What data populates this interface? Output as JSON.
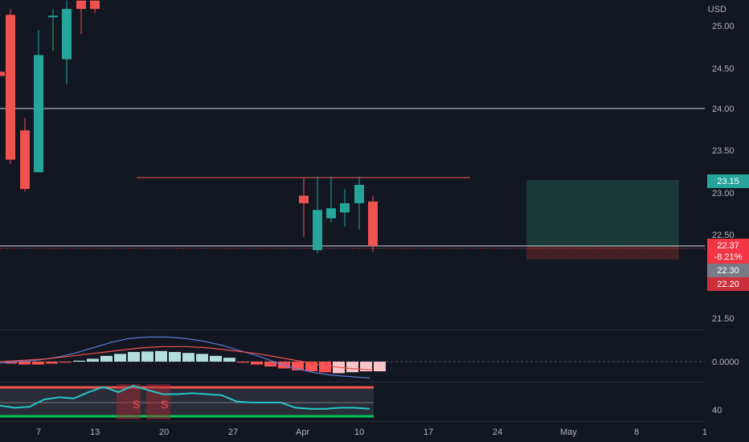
{
  "header": {
    "currency": "USD"
  },
  "price_scale": {
    "labels": [
      "25.00",
      "24.50",
      "24.00",
      "23.50",
      "23.00",
      "22.50",
      "21.50"
    ],
    "tags": [
      {
        "text": "23.15",
        "kind": "green"
      },
      {
        "text": "22.37",
        "kind": "red"
      },
      {
        "text": "-8.21%",
        "kind": "red"
      },
      {
        "text": "22.30",
        "kind": "gray"
      },
      {
        "text": "22.20",
        "kind": "darkred"
      }
    ]
  },
  "oscillator_scale": {
    "labels": [
      "0.0000"
    ]
  },
  "rsi_scale": {
    "labels": [
      "40"
    ]
  },
  "time_axis": {
    "labels": [
      "7",
      "13",
      "20",
      "27",
      "Apr",
      "10",
      "17",
      "24",
      "May",
      "8",
      "1"
    ]
  },
  "signals": {
    "labels": [
      "S",
      "S"
    ]
  },
  "colors": {
    "background": "#131722",
    "up": "#26a69a",
    "down": "#ef5350",
    "grid": "#2a2e39",
    "text": "#b2b5be"
  },
  "chart_data": {
    "type": "candlestick",
    "ylim": [
      21.2,
      25.3
    ],
    "candles": [
      {
        "o": 24.45,
        "h": 24.45,
        "l": 24.4,
        "c": 24.4
      },
      {
        "o": 25.13,
        "h": 25.2,
        "l": 23.35,
        "c": 23.4
      },
      {
        "o": 23.75,
        "h": 23.9,
        "l": 23.02,
        "c": 23.05
      },
      {
        "o": 23.25,
        "h": 24.95,
        "l": 23.25,
        "c": 24.65
      },
      {
        "o": 25.12,
        "h": 25.2,
        "l": 24.7,
        "c": 25.12
      },
      {
        "o": 24.6,
        "h": 25.3,
        "l": 24.3,
        "c": 25.2
      },
      {
        "o": 25.3,
        "h": 25.3,
        "l": 24.9,
        "c": 25.2
      },
      {
        "o": 25.3,
        "h": 25.3,
        "l": 25.15,
        "c": 25.2
      },
      {
        "o": 22.97,
        "h": 23.18,
        "l": 22.48,
        "c": 22.88
      },
      {
        "o": 22.32,
        "h": 23.2,
        "l": 22.28,
        "c": 22.8
      },
      {
        "o": 22.7,
        "h": 23.2,
        "l": 22.65,
        "c": 22.82
      },
      {
        "o": 22.77,
        "h": 23.05,
        "l": 22.6,
        "c": 22.88
      },
      {
        "o": 22.88,
        "h": 23.2,
        "l": 22.57,
        "c": 23.1
      },
      {
        "o": 22.9,
        "h": 22.97,
        "l": 22.3,
        "c": 22.37
      }
    ],
    "horizontal_lines": [
      24.0,
      22.37
    ],
    "resistance_line": 23.18,
    "position": {
      "entry": 22.37,
      "target": 23.15,
      "stop": 22.2
    },
    "oscillator": {
      "zero_label": "0.0000",
      "histogram": [
        -0.2,
        -0.3,
        -0.3,
        -0.2,
        -0.1,
        0.1,
        0.3,
        0.6,
        0.8,
        1.0,
        1.05,
        1.1,
        1.0,
        0.9,
        0.8,
        0.6,
        0.4,
        -0.1,
        -0.3,
        -0.5,
        -0.7,
        -0.9,
        -1.0,
        -1.1,
        -1.2,
        -1.1,
        -1.0,
        -1.0
      ],
      "signal_line": [
        -0.1,
        0.0,
        0.1,
        0.3,
        0.6,
        1.0,
        1.4,
        1.7,
        1.8,
        1.8,
        1.7,
        1.5,
        1.2,
        0.8,
        0.4,
        -0.1,
        -0.5,
        -0.8,
        -1.0,
        -1.1,
        -1.2
      ],
      "slow_line": [
        0.0,
        0.1,
        0.2,
        0.4,
        0.6,
        0.8,
        1.0,
        1.1,
        1.1,
        1.0,
        0.8,
        0.6,
        0.3,
        0.0,
        -0.3,
        -0.5,
        -0.6
      ]
    },
    "rsi": {
      "label": "40",
      "values": [
        42,
        40,
        41,
        48,
        50,
        49,
        55,
        60,
        55,
        61,
        57,
        53,
        53,
        54,
        53,
        52,
        46,
        45,
        45,
        45,
        40,
        39,
        39,
        40,
        40,
        39
      ]
    }
  }
}
